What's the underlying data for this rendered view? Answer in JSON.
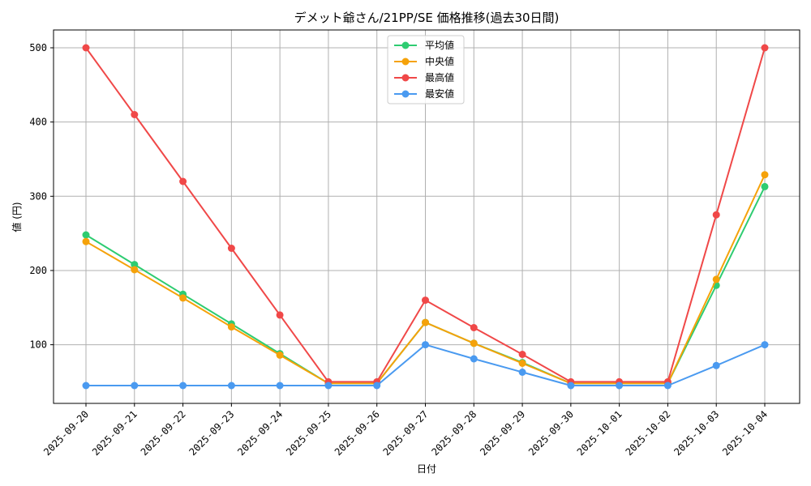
{
  "chart_data": {
    "type": "line",
    "title": "デメット爺さん/21PP/SE 価格推移(過去30日間)",
    "xlabel": "日付",
    "ylabel": "値 (円)",
    "categories": [
      "2025-09-20",
      "2025-09-21",
      "2025-09-22",
      "2025-09-23",
      "2025-09-24",
      "2025-09-25",
      "2025-09-26",
      "2025-09-27",
      "2025-09-28",
      "2025-09-29",
      "2025-09-30",
      "2025-10-01",
      "2025-10-02",
      "2025-10-03",
      "2025-10-04"
    ],
    "ylim": [
      21,
      524
    ],
    "yticks": [
      100,
      200,
      300,
      400,
      500
    ],
    "grid": true,
    "legend_position": "top-center",
    "series": [
      {
        "name": "平均値",
        "color": "#2ecc71",
        "values": [
          248,
          208,
          168,
          128,
          88,
          48,
          48,
          130,
          102,
          76,
          48,
          48,
          48,
          180,
          313
        ]
      },
      {
        "name": "中央値",
        "color": "#f5a20a",
        "values": [
          239,
          201,
          163,
          124,
          86,
          48,
          48,
          130,
          102,
          75,
          48,
          48,
          48,
          188,
          329
        ]
      },
      {
        "name": "最高値",
        "color": "#f04848",
        "values": [
          500,
          410,
          320,
          230,
          140,
          50,
          50,
          160,
          123,
          87,
          50,
          50,
          50,
          275,
          500
        ]
      },
      {
        "name": "最安値",
        "color": "#4a9af0",
        "values": [
          45,
          45,
          45,
          45,
          45,
          45,
          45,
          100,
          81,
          63,
          45,
          45,
          45,
          72,
          100
        ]
      }
    ]
  }
}
